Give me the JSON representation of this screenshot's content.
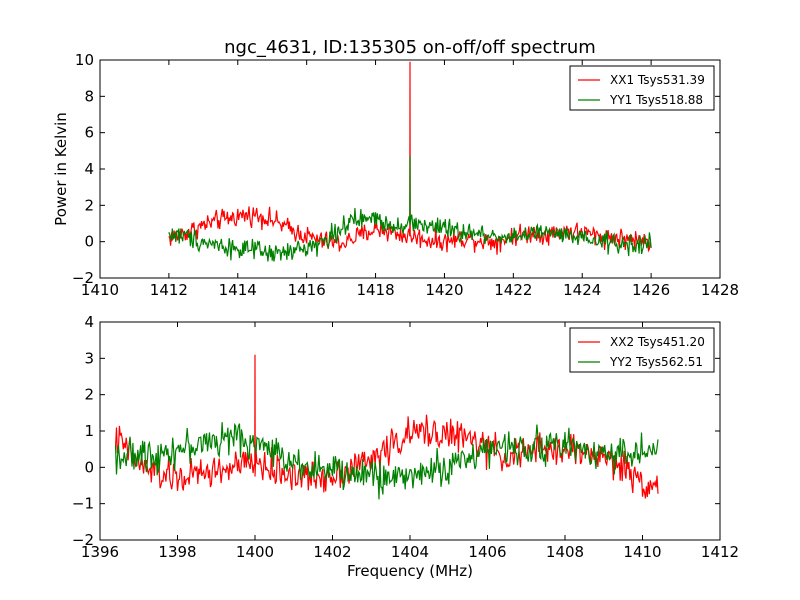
{
  "figure": {
    "title": "ngc_4631, ID:135305 on-off/off spectrum",
    "ylabel": "Power in Kelvin",
    "xlabel": "Frequency (MHz)"
  },
  "colors": {
    "xx": "#ff0000",
    "yy": "#008000"
  },
  "chart_data": [
    {
      "type": "line",
      "xlim": [
        1410,
        1428
      ],
      "ylim": [
        -2,
        10
      ],
      "xticks": [
        "1410",
        "1412",
        "1414",
        "1416",
        "1418",
        "1420",
        "1422",
        "1424",
        "1426",
        "1428"
      ],
      "yticks": [
        "−2",
        "0",
        "2",
        "4",
        "6",
        "8",
        "10"
      ],
      "xtick_values": [
        1410,
        1412,
        1414,
        1416,
        1418,
        1420,
        1422,
        1424,
        1426,
        1428
      ],
      "ytick_values": [
        -2,
        0,
        2,
        4,
        6,
        8,
        10
      ],
      "legend_position": "top-right",
      "series": [
        {
          "name": "XX1 Tsys531.39",
          "color": "#ff0000",
          "x": [
            1412.0,
            1412.5,
            1413.0,
            1413.5,
            1414.0,
            1414.5,
            1415.0,
            1415.5,
            1416.0,
            1416.5,
            1417.0,
            1417.5,
            1418.0,
            1418.5,
            1418.9,
            1419.0,
            1419.1,
            1419.5,
            1420.0,
            1420.5,
            1421.0,
            1421.5,
            1422.0,
            1422.5,
            1423.0,
            1423.5,
            1424.0,
            1424.5,
            1425.0,
            1425.5,
            1426.0
          ],
          "y": [
            0.2,
            0.5,
            0.9,
            1.2,
            1.4,
            1.5,
            1.2,
            0.7,
            0.3,
            0.0,
            -0.1,
            0.3,
            0.7,
            0.5,
            0.3,
            9.9,
            0.3,
            0.1,
            0.0,
            0.2,
            0.1,
            0.0,
            0.3,
            0.5,
            0.4,
            0.6,
            0.5,
            0.3,
            0.2,
            0.1,
            0.0
          ]
        },
        {
          "name": "YY1 Tsys518.88",
          "color": "#008000",
          "x": [
            1412.0,
            1412.5,
            1413.0,
            1413.5,
            1414.0,
            1414.5,
            1415.0,
            1415.5,
            1416.0,
            1416.5,
            1417.0,
            1417.5,
            1418.0,
            1418.5,
            1418.9,
            1419.0,
            1419.1,
            1419.5,
            1420.0,
            1420.5,
            1421.0,
            1421.5,
            1422.0,
            1422.5,
            1423.0,
            1423.5,
            1424.0,
            1424.5,
            1425.0,
            1425.5,
            1426.0
          ],
          "y": [
            0.4,
            0.3,
            0.0,
            -0.2,
            -0.4,
            -0.5,
            -0.7,
            -0.6,
            -0.3,
            0.0,
            0.8,
            1.2,
            1.3,
            0.9,
            1.0,
            4.7,
            1.0,
            0.9,
            0.7,
            0.5,
            0.4,
            0.3,
            0.3,
            0.4,
            0.5,
            0.3,
            0.1,
            0.0,
            -0.1,
            -0.2,
            -0.1
          ]
        }
      ]
    },
    {
      "type": "line",
      "xlim": [
        1396,
        1412
      ],
      "ylim": [
        -2,
        4
      ],
      "xticks": [
        "1396",
        "1398",
        "1400",
        "1402",
        "1404",
        "1406",
        "1408",
        "1410",
        "1412"
      ],
      "yticks": [
        "−2",
        "−1",
        "0",
        "1",
        "2",
        "3",
        "4"
      ],
      "xtick_values": [
        1396,
        1398,
        1400,
        1402,
        1404,
        1406,
        1408,
        1410,
        1412
      ],
      "ytick_values": [
        -2,
        -1,
        0,
        1,
        2,
        3,
        4
      ],
      "xlabel": "Frequency (MHz)",
      "legend_position": "top-right",
      "series": [
        {
          "name": "XX2 Tsys451.20",
          "color": "#ff0000",
          "x": [
            1396.4,
            1396.6,
            1397.0,
            1397.5,
            1398.0,
            1398.5,
            1399.0,
            1399.5,
            1399.9,
            1400.0,
            1400.1,
            1400.5,
            1401.0,
            1401.5,
            1402.0,
            1402.5,
            1403.0,
            1403.5,
            1404.0,
            1404.5,
            1405.0,
            1405.5,
            1406.0,
            1406.5,
            1407.0,
            1407.5,
            1408.0,
            1408.5,
            1409.0,
            1409.5,
            1410.0,
            1410.4
          ],
          "y": [
            0.8,
            0.6,
            0.1,
            -0.2,
            -0.3,
            -0.2,
            -0.1,
            0.0,
            0.1,
            3.1,
            0.1,
            -0.1,
            -0.2,
            -0.3,
            -0.2,
            0.0,
            0.2,
            0.6,
            0.9,
            1.0,
            0.9,
            0.8,
            0.5,
            0.3,
            0.4,
            0.5,
            0.5,
            0.4,
            0.3,
            0.0,
            -0.4,
            -0.5
          ]
        },
        {
          "name": "YY2 Tsys562.51",
          "color": "#008000",
          "x": [
            1396.4,
            1396.6,
            1397.0,
            1397.5,
            1398.0,
            1398.5,
            1399.0,
            1399.5,
            1399.9,
            1400.0,
            1400.1,
            1400.5,
            1401.0,
            1401.5,
            1402.0,
            1402.5,
            1403.0,
            1403.5,
            1404.0,
            1404.5,
            1405.0,
            1405.5,
            1406.0,
            1406.5,
            1407.0,
            1407.5,
            1408.0,
            1408.5,
            1409.0,
            1409.5,
            1410.0,
            1410.4
          ],
          "y": [
            0.4,
            0.3,
            0.3,
            0.4,
            0.5,
            0.6,
            0.8,
            0.8,
            0.7,
            0.8,
            0.6,
            0.4,
            0.2,
            0.0,
            -0.1,
            -0.2,
            -0.2,
            -0.3,
            -0.2,
            -0.1,
            0.0,
            0.3,
            0.5,
            0.5,
            0.6,
            0.6,
            0.6,
            0.5,
            0.4,
            0.4,
            0.4,
            0.5
          ]
        }
      ]
    }
  ]
}
